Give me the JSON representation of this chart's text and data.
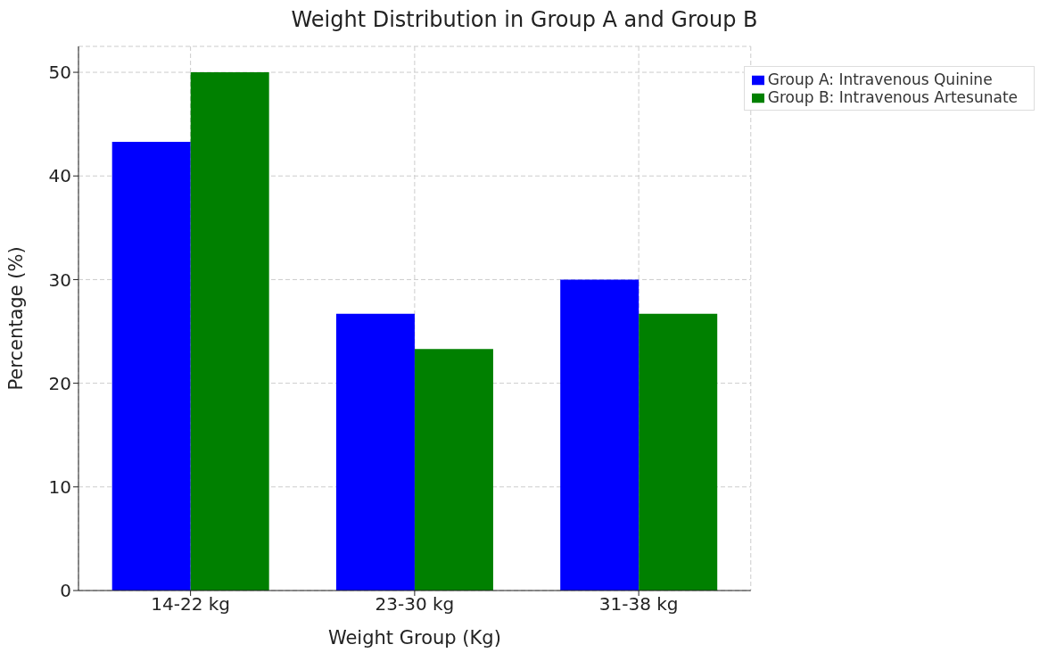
{
  "chart_data": {
    "type": "bar",
    "title": "Weight Distribution in Group A and Group B",
    "xlabel": "Weight Group (Kg)",
    "ylabel": "Percentage (%)",
    "categories": [
      "14-22 kg",
      "23-30 kg",
      "31-38 kg"
    ],
    "series": [
      {
        "name": "Group A: Intravenous Quinine",
        "color": "#0000ff",
        "values": [
          43.3,
          26.7,
          30
        ]
      },
      {
        "name": "Group B: Intravenous Artesunate",
        "color": "#008000",
        "values": [
          50,
          23.3,
          26.7
        ]
      }
    ],
    "ylim": [
      0,
      52.5
    ],
    "yticks": [
      0,
      10,
      20,
      30,
      40,
      50
    ],
    "grid": true,
    "legend": "top right"
  }
}
